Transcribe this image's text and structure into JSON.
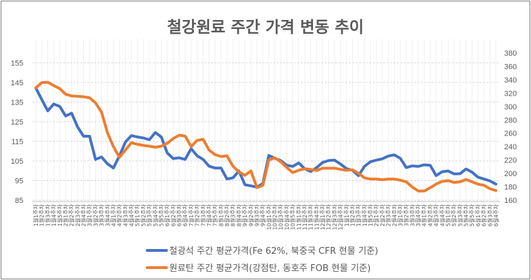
{
  "chart_data": {
    "type": "line",
    "title": "철강원료 주간 가격 변동 추이",
    "xlabel": "",
    "ylabel": "",
    "y_left": {
      "min": 85,
      "max": 160,
      "ticks": [
        85,
        95,
        105,
        115,
        125,
        135,
        145,
        155
      ]
    },
    "y_right": {
      "min": 160,
      "max": 380,
      "ticks": [
        160,
        180,
        200,
        220,
        240,
        260,
        280,
        300,
        320,
        340,
        360,
        380
      ]
    },
    "grid": true,
    "legend": "bottom",
    "categories": [
      "1월1주차",
      "1월2주차",
      "1월3주차",
      "1월4주차",
      "1월5주차",
      "2월1주차",
      "2월2주차",
      "2월3주차",
      "2월4주차",
      "3월1주차",
      "3월2주차",
      "3월3주차",
      "3월4주차",
      "4월1주차",
      "4월2주차",
      "4월3주차",
      "4월4주차",
      "5월1주차",
      "5월2주차",
      "5월3주차",
      "5월4주차",
      "5월5주차",
      "6월1주차",
      "6월2주차",
      "6월3주차",
      "6월4주차",
      "7월1주차",
      "7월2주차",
      "7월3주차",
      "7월4주차",
      "7월5주차",
      "8월1주차",
      "8월2주차",
      "8월3주차",
      "8월4주차",
      "9월1주차",
      "9월2주차",
      "9월3주차",
      "9월4주차",
      "10월1주차",
      "10월2주차",
      "10월3주차",
      "10월4주차",
      "10월5주차",
      "11월1주차",
      "11월2주차",
      "11월3주차",
      "11월4주차",
      "12월1주차",
      "12월2주차",
      "12월3주차",
      "12월4주차",
      "1월1주차",
      "1월2주차",
      "1월3주차",
      "1월4주차",
      "1월5주차",
      "2월1주차",
      "2월2주차",
      "2월3주차",
      "2월4주차",
      "3월1주차",
      "3월2주차",
      "3월3주차",
      "3월4주차",
      "4월1주차",
      "4월2주차",
      "4월3주차",
      "4월4주차",
      "5월1주차",
      "5월2주차",
      "5월3주차",
      "5월4주차",
      "5월5주차",
      "6월1주차",
      "6월2주차",
      "6월3주차",
      "6월4주차"
    ],
    "series": [
      {
        "name": "철광석 주간 평균가격(Fe 62%, 북중국 CFR 현물 기준)",
        "axis": "left",
        "color": "#4472c4",
        "values": [
          142.2,
          136.3,
          130.5,
          134,
          132.8,
          127.9,
          129.3,
          122.3,
          117.6,
          117.6,
          105.8,
          107,
          103.5,
          101.4,
          107.6,
          114.6,
          117.9,
          117.2,
          116.7,
          115.8,
          119.5,
          117.2,
          109.1,
          106.2,
          106.6,
          105.8,
          111.3,
          107.6,
          105.8,
          102.3,
          101.4,
          101.4,
          95.8,
          96.4,
          99.9,
          92.9,
          92.3,
          91.7,
          93.5,
          107.8,
          106.3,
          105.2,
          102.8,
          102.2,
          104,
          101,
          99.6,
          101.6,
          104.2,
          105.2,
          105.4,
          103.4,
          101.1,
          100.2,
          97.5,
          102.2,
          104.6,
          105.4,
          106.1,
          107.5,
          108.1,
          106.3,
          101.6,
          102.5,
          102.2,
          103,
          102.8,
          97.5,
          99.5,
          99.9,
          98.4,
          98.5,
          100.9,
          99.3,
          96.7,
          95.8,
          94.8,
          93.2
        ]
      },
      {
        "name": "원료탄 주간 평균가격(강점탄, 동호주 FOB 현물 기준)",
        "axis": "right",
        "color": "#ed7d31",
        "values": [
          327.8,
          335.7,
          336.3,
          331.3,
          326.9,
          318.4,
          315.7,
          315.2,
          314.6,
          313.1,
          305.5,
          291.7,
          260.6,
          240,
          224,
          234.8,
          245.9,
          243.6,
          241.8,
          240.7,
          239.2,
          240.7,
          245,
          252.1,
          257.2,
          255.7,
          240.2,
          249.3,
          251,
          234.9,
          228.1,
          225.3,
          226.3,
          210.8,
          202.3,
          197.1,
          203.8,
          178.8,
          182,
          220,
          223.3,
          217.4,
          208.8,
          201.3,
          204.7,
          207.1,
          206.1,
          204.3,
          207.8,
          207.8,
          207.8,
          206.1,
          204.7,
          205.4,
          200.2,
          193.3,
          191.6,
          191.6,
          190.6,
          191.6,
          191.6,
          189.9,
          187.5,
          179.6,
          173.8,
          173.8,
          178.6,
          184.1,
          188.2,
          189.2,
          186.5,
          187.5,
          190.9,
          187.5,
          184.1,
          182.3,
          177.2,
          174.4
        ]
      }
    ]
  }
}
